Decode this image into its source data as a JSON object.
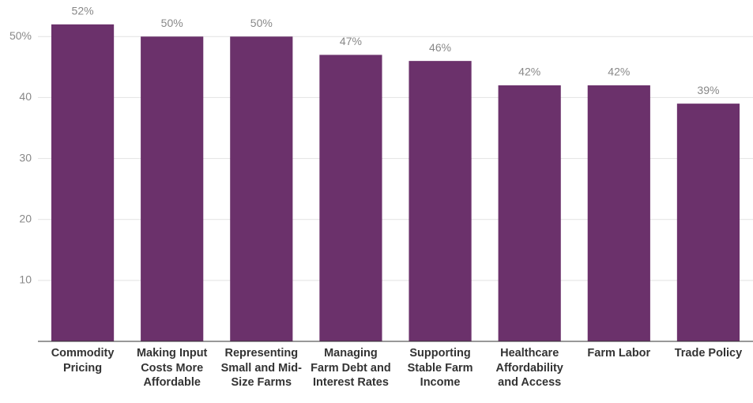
{
  "chart_data": {
    "type": "bar",
    "categories": [
      "Commodity Pricing",
      "Making Input Costs More Affordable",
      "Representing Small and Mid-Size Farms",
      "Managing Farm Debt and Interest Rates",
      "Supporting Stable Farm Income",
      "Healthcare Affordability and Access",
      "Farm Labor",
      "Trade Policy"
    ],
    "values": [
      52,
      50,
      50,
      47,
      46,
      42,
      42,
      39
    ],
    "value_labels": [
      "52%",
      "50%",
      "50%",
      "47%",
      "46%",
      "42%",
      "42%",
      "39%"
    ],
    "color": "#6b316b",
    "ylim": [
      0,
      56
    ],
    "yticks": [
      10,
      20,
      30,
      40,
      {
        "value": 50,
        "label": "50%"
      }
    ],
    "grid": true
  }
}
